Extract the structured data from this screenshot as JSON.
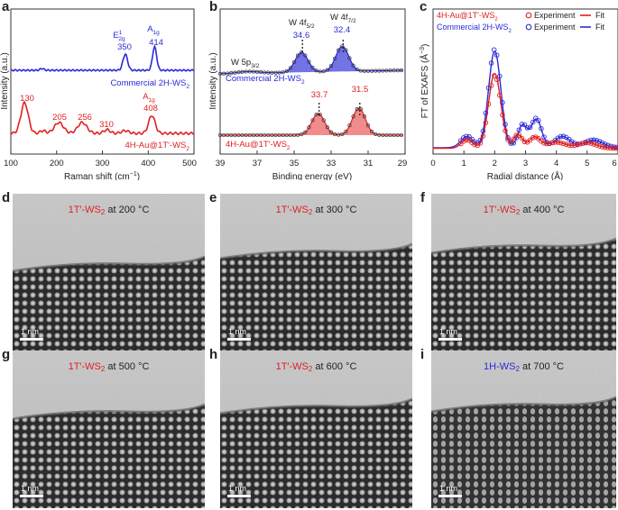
{
  "panels": {
    "a": {
      "letter": "a",
      "xlabel_main": "Raman shift (cm",
      "xlabel_sup": "−1",
      "xlabel_end": ")",
      "ylabel": "Intensity (a.u.)",
      "xticks": [
        "100",
        "200",
        "300",
        "400",
        "500"
      ],
      "top_curve_label_main": "Commercial 2H-WS",
      "top_curve_label_sub": "2",
      "bottom_curve_label_main": "4H-Au@1T′-WS",
      "bottom_curve_label_sub": "2",
      "top_peaks": [
        {
          "mode_main": "E",
          "mode_sup": "1",
          "mode_sub": "2g",
          "value": "350"
        },
        {
          "mode_main": "A",
          "mode_sub": "1g",
          "value": "414"
        }
      ],
      "bottom_peaks": [
        "130",
        "205",
        "256",
        "310"
      ],
      "bottom_a1g": {
        "mode_main": "A",
        "mode_sub": "1g",
        "value": "408"
      }
    },
    "b": {
      "letter": "b",
      "xlabel": "Binding energy (eV)",
      "ylabel": "Intensity (a.u.)",
      "xticks": [
        "39",
        "37",
        "35",
        "33",
        "31",
        "29"
      ],
      "w5p_main": "W 5p",
      "w5p_sub": "3/2",
      "w4f52_main": "W 4f",
      "w4f52_sub": "5/2",
      "w4f72_main": "W 4f",
      "w4f72_sub": "7/2",
      "top_values": [
        "34.6",
        "32.4"
      ],
      "bottom_values": [
        "33.7",
        "31.5"
      ],
      "top_curve_label_main": "Commercial 2H-WS",
      "top_curve_label_sub": "2",
      "bottom_curve_label_main": "4H-Au@1T′-WS",
      "bottom_curve_label_sub": "2"
    },
    "c": {
      "letter": "c",
      "xlabel": "Radial distance (Å)",
      "ylabel_main": "FT of EXAFS (Å",
      "ylabel_sup": "−3",
      "ylabel_end": ")",
      "xticks": [
        "0",
        "1",
        "2",
        "3",
        "4",
        "5",
        "6"
      ],
      "legend": {
        "red_label_main": "4H-Au@1T′-WS",
        "red_label_sub": "2",
        "blue_label_main": "Commercial 2H-WS",
        "blue_label_sub": "2",
        "experiment": "Experiment",
        "fit": "Fit"
      }
    }
  },
  "tem_panels": [
    {
      "letter": "d",
      "phase_main": "1T′-WS",
      "phase_sub": "2",
      "temp": " at 200 °C",
      "phase_color": "#e02020",
      "scale": "1 nm"
    },
    {
      "letter": "e",
      "phase_main": "1T′-WS",
      "phase_sub": "2",
      "temp": " at 300 °C",
      "phase_color": "#e02020",
      "scale": "1 nm"
    },
    {
      "letter": "f",
      "phase_main": "1T′-WS",
      "phase_sub": "2",
      "temp": " at 400 °C",
      "phase_color": "#e02020",
      "scale": "1 nm"
    },
    {
      "letter": "g",
      "phase_main": "1T′-WS",
      "phase_sub": "2",
      "temp": " at 500 °C",
      "phase_color": "#e02020",
      "scale": "1 nm"
    },
    {
      "letter": "h",
      "phase_main": "1T′-WS",
      "phase_sub": "2",
      "temp": " at 600 °C",
      "phase_color": "#e02020",
      "scale": "1 nm"
    },
    {
      "letter": "i",
      "phase_main": "1H-WS",
      "phase_sub": "2",
      "temp": " at 700 °C",
      "phase_color": "#2a2ad8",
      "scale": "1 nm"
    }
  ],
  "colors": {
    "red": "#e02020",
    "blue": "#2a2ad8",
    "fill_red": "#f08080",
    "fill_blue": "#5b5be0"
  }
}
